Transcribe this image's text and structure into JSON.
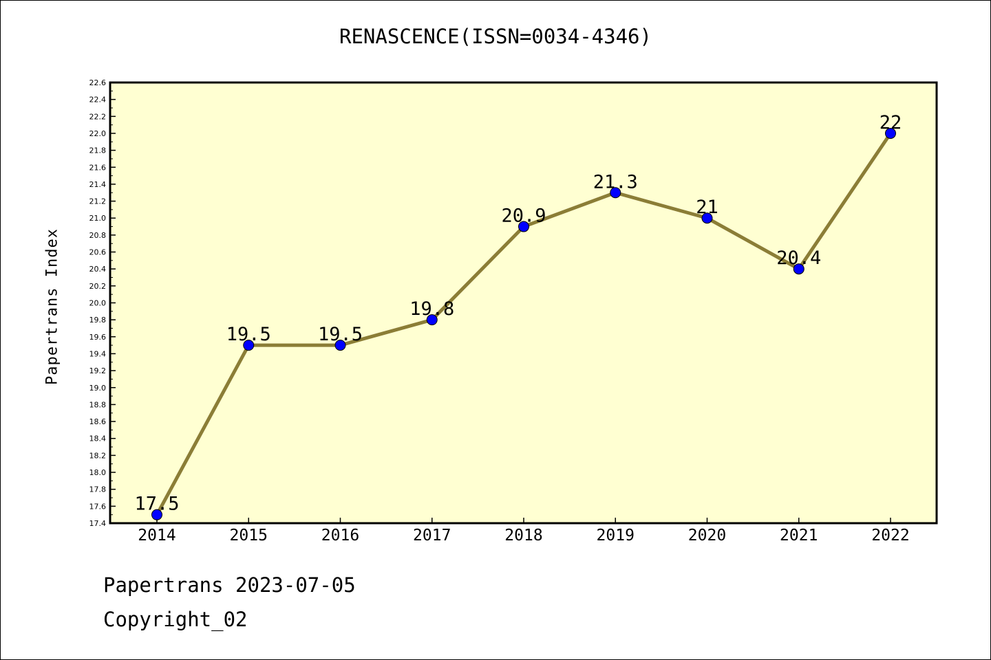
{
  "chart_data": {
    "type": "line",
    "title": "RENASCENCE(ISSN=0034-4346)",
    "ylabel": "Papertrans Index",
    "xlabel": "",
    "categories": [
      "2014",
      "2015",
      "2016",
      "2017",
      "2018",
      "2019",
      "2020",
      "2021",
      "2022"
    ],
    "values": [
      17.5,
      19.5,
      19.5,
      19.8,
      20.9,
      21.3,
      21,
      20.4,
      22
    ],
    "data_labels": [
      "17.5",
      "19.5",
      "19.5",
      "19.8",
      "20.9",
      "21.3",
      "21",
      "20.4",
      "22"
    ],
    "ylim": [
      17.4,
      22.6
    ],
    "y_tick_labels": [
      "17.4",
      "17.6",
      "17.8",
      "18.0",
      "18.2",
      "18.4",
      "18.6",
      "18.8",
      "19.0",
      "19.2",
      "19.4",
      "19.6",
      "19.8",
      "20.0",
      "20.2",
      "20.4",
      "20.6",
      "20.8",
      "21.0",
      "21.2",
      "21.4",
      "21.6",
      "21.8",
      "22.0",
      "22.2",
      "22.4",
      "22.6"
    ],
    "grid": false,
    "legend": "none",
    "colors": {
      "plot_background": "#ffffd2",
      "line": "#8b7d36",
      "marker": "#0000ff"
    }
  },
  "footer": {
    "date_line": "Papertrans 2023-07-05",
    "copyright": "Copyright_02"
  }
}
